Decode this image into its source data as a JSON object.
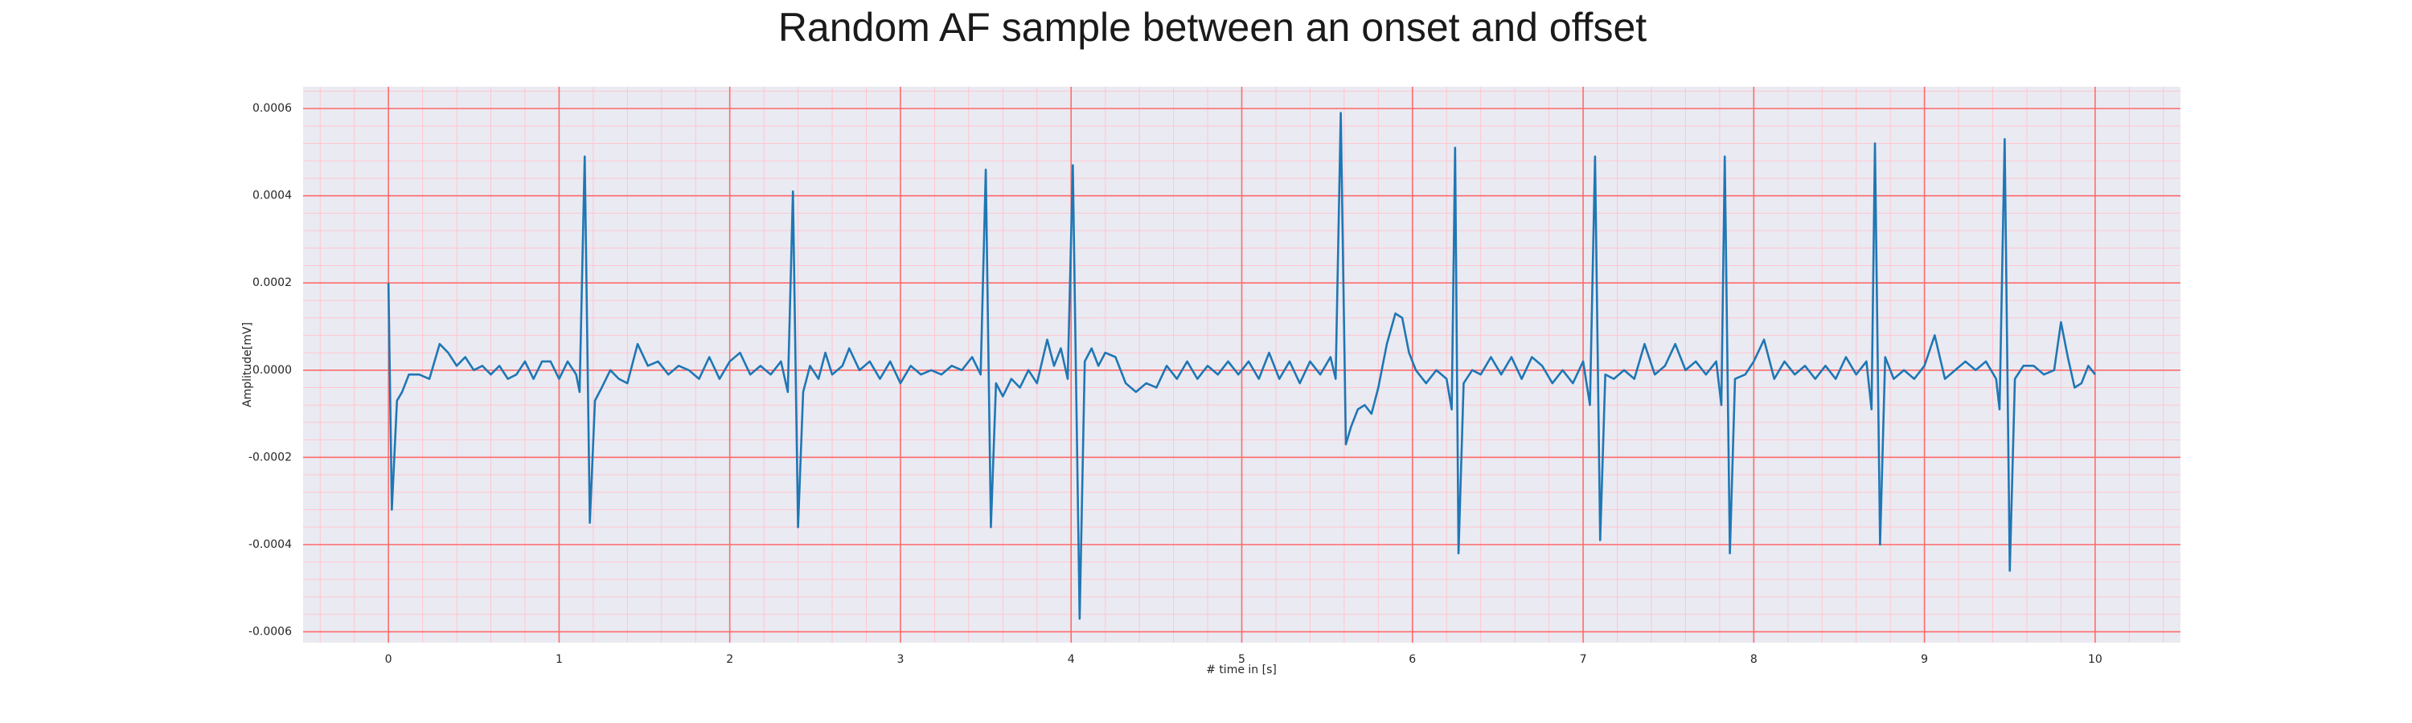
{
  "chart_data": {
    "type": "line",
    "title": "Random AF sample between an onset and offset",
    "xlabel": "# time in [s]",
    "ylabel": "Amplitude[mV]",
    "color": "#1f77b4",
    "grid": true,
    "minor_grid": true,
    "xlim": [
      -0.5,
      10.5
    ],
    "ylim": [
      -0.000625,
      0.00065
    ],
    "xticks": [
      0,
      1,
      2,
      3,
      4,
      5,
      6,
      7,
      8,
      9,
      10
    ],
    "yticks": [
      -0.0006,
      -0.0004,
      -0.0002,
      {
        "value": 0,
        "label": "0.0000"
      },
      0.0002,
      0.0004,
      0.0006
    ],
    "x": [
      0,
      0.02,
      0.05,
      0.08,
      0.12,
      0.18,
      0.24,
      0.3,
      0.35,
      0.4,
      0.45,
      0.5,
      0.55,
      0.6,
      0.65,
      0.7,
      0.75,
      0.8,
      0.85,
      0.9,
      0.95,
      1.0,
      1.05,
      1.1,
      1.12,
      1.15,
      1.18,
      1.21,
      1.25,
      1.3,
      1.35,
      1.4,
      1.46,
      1.52,
      1.58,
      1.64,
      1.7,
      1.76,
      1.82,
      1.88,
      1.94,
      2.0,
      2.06,
      2.12,
      2.18,
      2.24,
      2.3,
      2.34,
      2.37,
      2.4,
      2.43,
      2.47,
      2.52,
      2.56,
      2.6,
      2.66,
      2.7,
      2.76,
      2.82,
      2.88,
      2.94,
      3.0,
      3.06,
      3.12,
      3.18,
      3.24,
      3.3,
      3.36,
      3.42,
      3.47,
      3.5,
      3.53,
      3.56,
      3.6,
      3.65,
      3.7,
      3.75,
      3.8,
      3.86,
      3.9,
      3.94,
      3.98,
      4.01,
      4.05,
      4.08,
      4.12,
      4.16,
      4.2,
      4.26,
      4.32,
      4.38,
      4.44,
      4.5,
      4.56,
      4.62,
      4.68,
      4.74,
      4.8,
      4.86,
      4.92,
      4.98,
      5.04,
      5.1,
      5.16,
      5.22,
      5.28,
      5.34,
      5.4,
      5.46,
      5.52,
      5.55,
      5.58,
      5.61,
      5.64,
      5.68,
      5.72,
      5.76,
      5.8,
      5.85,
      5.9,
      5.94,
      5.98,
      6.02,
      6.08,
      6.14,
      6.2,
      6.23,
      6.25,
      6.27,
      6.3,
      6.35,
      6.4,
      6.46,
      6.52,
      6.58,
      6.64,
      6.7,
      6.76,
      6.82,
      6.88,
      6.94,
      7.0,
      7.04,
      7.07,
      7.1,
      7.13,
      7.18,
      7.24,
      7.3,
      7.36,
      7.42,
      7.48,
      7.54,
      7.6,
      7.66,
      7.72,
      7.78,
      7.81,
      7.83,
      7.86,
      7.89,
      7.95,
      8.0,
      8.06,
      8.12,
      8.18,
      8.24,
      8.3,
      8.36,
      8.42,
      8.48,
      8.54,
      8.6,
      8.66,
      8.69,
      8.71,
      8.74,
      8.77,
      8.82,
      8.88,
      8.94,
      9.0,
      9.06,
      9.12,
      9.18,
      9.24,
      9.3,
      9.36,
      9.42,
      9.44,
      9.47,
      9.5,
      9.53,
      9.58,
      9.64,
      9.7,
      9.76,
      9.8,
      9.84,
      9.88,
      9.92,
      9.96,
      10.0
    ],
    "values": [
      0.0002,
      -0.00032,
      -7e-05,
      -5e-05,
      -1e-05,
      -1e-05,
      -2e-05,
      6e-05,
      4e-05,
      1e-05,
      3e-05,
      0.0,
      1e-05,
      -1e-05,
      1e-05,
      -2e-05,
      -1e-05,
      2e-05,
      -2e-05,
      2e-05,
      2e-05,
      -2e-05,
      2e-05,
      -1e-05,
      -5e-05,
      0.00049,
      -0.00035,
      -7e-05,
      -4e-05,
      0.0,
      -2e-05,
      -3e-05,
      6e-05,
      1e-05,
      2e-05,
      -1e-05,
      1e-05,
      0.0,
      -2e-05,
      3e-05,
      -2e-05,
      2e-05,
      4e-05,
      -1e-05,
      1e-05,
      -1e-05,
      2e-05,
      -5e-05,
      0.00041,
      -0.00036,
      -5e-05,
      1e-05,
      -2e-05,
      4e-05,
      -1e-05,
      1e-05,
      5e-05,
      0.0,
      2e-05,
      -2e-05,
      2e-05,
      -3e-05,
      1e-05,
      -1e-05,
      0.0,
      -1e-05,
      1e-05,
      0.0,
      3e-05,
      -1e-05,
      0.00046,
      -0.00036,
      -3e-05,
      -6e-05,
      -2e-05,
      -4e-05,
      0.0,
      -3e-05,
      7e-05,
      1e-05,
      5e-05,
      -2e-05,
      0.00047,
      -0.00057,
      2e-05,
      5e-05,
      1e-05,
      4e-05,
      3e-05,
      -3e-05,
      -5e-05,
      -3e-05,
      -4e-05,
      1e-05,
      -2e-05,
      2e-05,
      -2e-05,
      1e-05,
      -1e-05,
      2e-05,
      -1e-05,
      2e-05,
      -2e-05,
      4e-05,
      -2e-05,
      2e-05,
      -3e-05,
      2e-05,
      -1e-05,
      3e-05,
      -2e-05,
      0.00059,
      -0.00017,
      -0.00013,
      -9e-05,
      -8e-05,
      -0.0001,
      -4e-05,
      6e-05,
      0.00013,
      0.00012,
      4e-05,
      0.0,
      -3e-05,
      0.0,
      -2e-05,
      -9e-05,
      0.00051,
      -0.00042,
      -3e-05,
      0.0,
      -1e-05,
      3e-05,
      -1e-05,
      3e-05,
      -2e-05,
      3e-05,
      1e-05,
      -3e-05,
      0.0,
      -3e-05,
      2e-05,
      -8e-05,
      0.00049,
      -0.00039,
      -1e-05,
      -2e-05,
      0.0,
      -2e-05,
      6e-05,
      -1e-05,
      1e-05,
      6e-05,
      0.0,
      2e-05,
      -1e-05,
      2e-05,
      -8e-05,
      0.00049,
      -0.00042,
      -2e-05,
      -1e-05,
      2e-05,
      7e-05,
      -2e-05,
      2e-05,
      -1e-05,
      1e-05,
      -2e-05,
      1e-05,
      -2e-05,
      3e-05,
      -1e-05,
      2e-05,
      -9e-05,
      0.00052,
      -0.0004,
      3e-05,
      -2e-05,
      0.0,
      -2e-05,
      1e-05,
      8e-05,
      -2e-05,
      0.0,
      2e-05,
      0.0,
      2e-05,
      -2e-05,
      -9e-05,
      0.00053,
      -0.00046,
      -2e-05,
      1e-05,
      1e-05,
      -1e-05,
      0.0,
      0.00011,
      3e-05,
      -4e-05,
      -3e-05,
      1e-05,
      -1e-05
    ]
  }
}
